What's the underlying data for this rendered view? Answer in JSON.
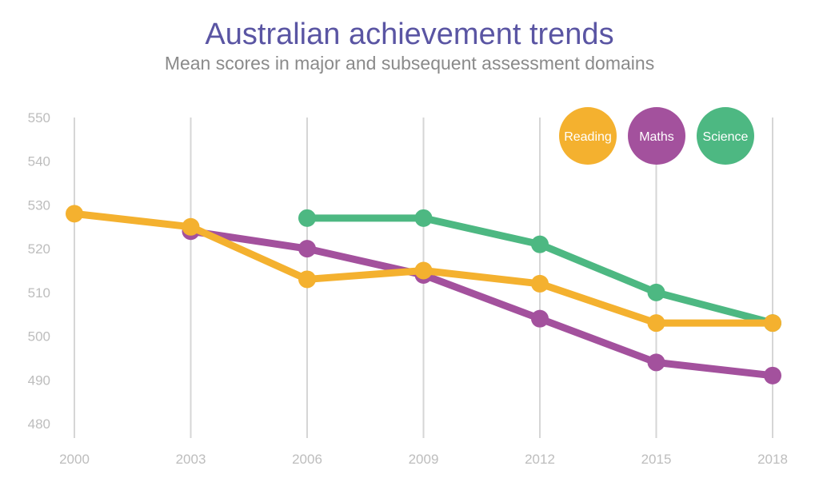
{
  "chart_data": {
    "type": "line",
    "title": "Australian achievement trends",
    "subtitle": "Mean scores in major and subsequent assessment domains",
    "x": [
      2000,
      2003,
      2006,
      2009,
      2012,
      2015,
      2018
    ],
    "ylim": [
      480,
      550
    ],
    "yticks": [
      480,
      490,
      500,
      510,
      520,
      530,
      540,
      550
    ],
    "grid": "vertical",
    "legend": "top-right",
    "series": [
      {
        "name": "Reading",
        "color": "#f4b12f",
        "values": [
          528,
          525,
          513,
          515,
          512,
          503,
          503
        ]
      },
      {
        "name": "Maths",
        "color": "#a3519d",
        "values": [
          null,
          524,
          520,
          514,
          504,
          494,
          491
        ]
      },
      {
        "name": "Science",
        "color": "#4db882",
        "values": [
          null,
          null,
          527,
          527,
          521,
          510,
          503
        ]
      }
    ]
  }
}
